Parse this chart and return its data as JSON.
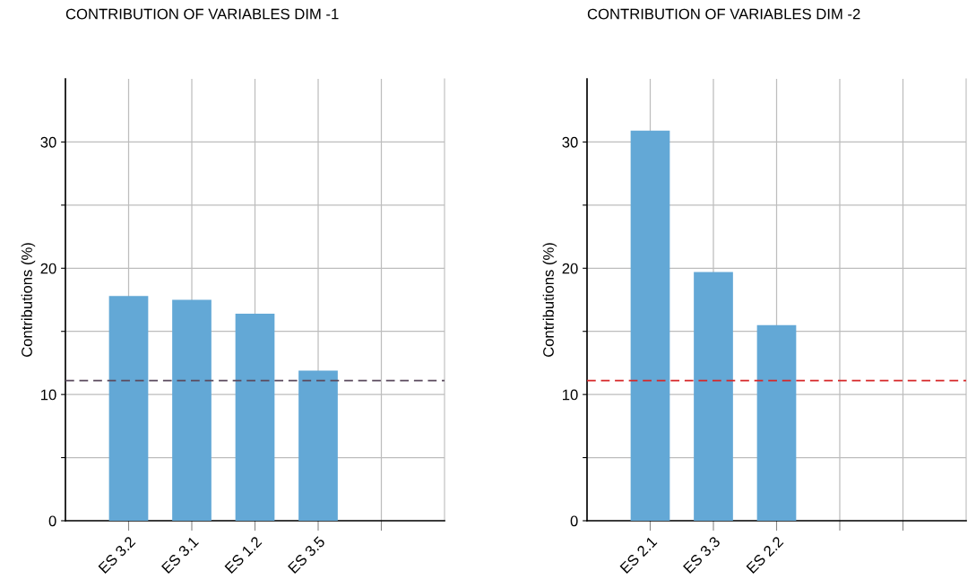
{
  "chart_data": [
    {
      "type": "bar",
      "title": "CONTRIBUTION OF VARIABLES DIM -1",
      "ylabel": "Contributions (%)",
      "categories": [
        "ES 3.2",
        "ES 3.1",
        "ES 1.2",
        "ES 3.5",
        null
      ],
      "values": [
        17.8,
        17.5,
        16.4,
        11.9,
        null
      ],
      "color": "#63a8d6",
      "ylim": [
        0,
        35
      ],
      "yticks": [
        0,
        {
          "value": 5,
          "label": null
        },
        10,
        {
          "value": 15,
          "label": null
        },
        20,
        {
          "value": 25,
          "label": null
        },
        30
      ],
      "grid": true,
      "ref_lines": [
        {
          "axis": "y",
          "value": 11.1,
          "color": "#5b4a5e",
          "line_style": "dashed"
        }
      ]
    },
    {
      "type": "bar",
      "title": "CONTRIBUTION OF VARIABLES DIM -2",
      "ylabel": "Contributions (%)",
      "categories": [
        "ES 2.1",
        "ES 3.3",
        "ES 2.2",
        null,
        null
      ],
      "values": [
        30.9,
        19.7,
        15.5,
        null,
        null
      ],
      "color": "#63a8d6",
      "ylim": [
        0,
        35
      ],
      "yticks": [
        0,
        {
          "value": 5,
          "label": null
        },
        10,
        {
          "value": 15,
          "label": null
        },
        20,
        {
          "value": 25,
          "label": null
        },
        30
      ],
      "grid": true,
      "ref_lines": [
        {
          "axis": "y",
          "value": 11.1,
          "color": "#d62728",
          "line_style": "dashed"
        }
      ]
    }
  ]
}
